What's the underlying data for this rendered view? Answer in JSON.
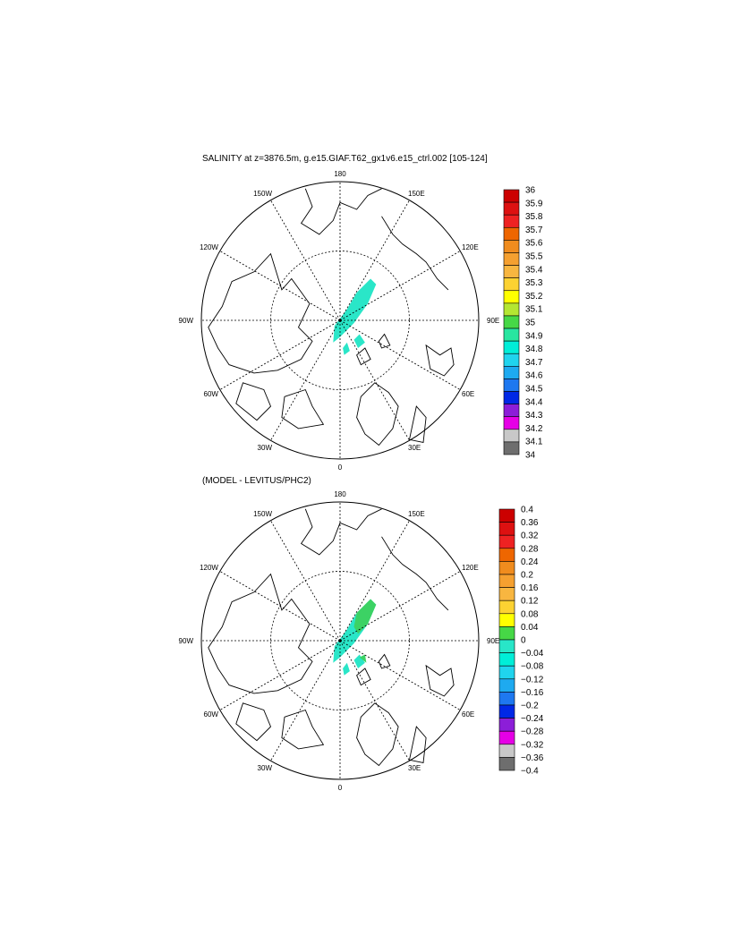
{
  "panels": [
    {
      "title": "SALINITY at z=3876.5m, g.e15.GIAF.T62_gx1v6.e15_ctrl.002 [105-124]",
      "lon_labels": [
        "180",
        "150E",
        "120E",
        "90E",
        "60E",
        "30E",
        "0",
        "30W",
        "60W",
        "90W",
        "120W",
        "150W"
      ],
      "colorbar_labels": [
        "36",
        "35.9",
        "35.8",
        "35.7",
        "35.6",
        "35.5",
        "35.4",
        "35.3",
        "35.2",
        "35.1",
        "35",
        "34.9",
        "34.8",
        "34.7",
        "34.6",
        "34.5",
        "34.4",
        "34.3",
        "34.2",
        "34.1",
        "34"
      ],
      "colorbar_colors": [
        "#cc0000",
        "#dd1111",
        "#ee2222",
        "#ee6600",
        "#f08c1e",
        "#f5a030",
        "#f8b640",
        "#fcd232",
        "#ffff00",
        "#b4e632",
        "#46d846",
        "#28e6a0",
        "#00eed8",
        "#20d4ee",
        "#1eaaf0",
        "#1e78f0",
        "#0028e6",
        "#8c1ed8",
        "#e600e6",
        "#c8c8c8",
        "#6e6e6e"
      ],
      "field_color": "#2ae6c8"
    },
    {
      "title": "(MODEL - LEVITUS/PHC2)",
      "lon_labels": [
        "180",
        "150E",
        "120E",
        "90E",
        "60E",
        "30E",
        "0",
        "30W",
        "60W",
        "90W",
        "120W",
        "150W"
      ],
      "colorbar_labels": [
        "0.4",
        "0.36",
        "0.32",
        "0.28",
        "0.24",
        "0.2",
        "0.16",
        "0.12",
        "0.08",
        "0.04",
        "0",
        "−0.04",
        "−0.08",
        "−0.12",
        "−0.16",
        "−0.2",
        "−0.24",
        "−0.28",
        "−0.32",
        "−0.36",
        "−0.4"
      ],
      "colorbar_colors": [
        "#cc0000",
        "#dd1111",
        "#ee2222",
        "#ee6600",
        "#f08c1e",
        "#f5a030",
        "#f8b640",
        "#fcd232",
        "#ffff00",
        "#46d846",
        "#28e6c8",
        "#00eed8",
        "#20d4ee",
        "#1eaaf0",
        "#1e78f0",
        "#0028e6",
        "#8c1ed8",
        "#e600e6",
        "#c8c8c8",
        "#6e6e6e"
      ],
      "field_color": "#2ae6c8",
      "field_color_positive": "#3cd264"
    }
  ]
}
